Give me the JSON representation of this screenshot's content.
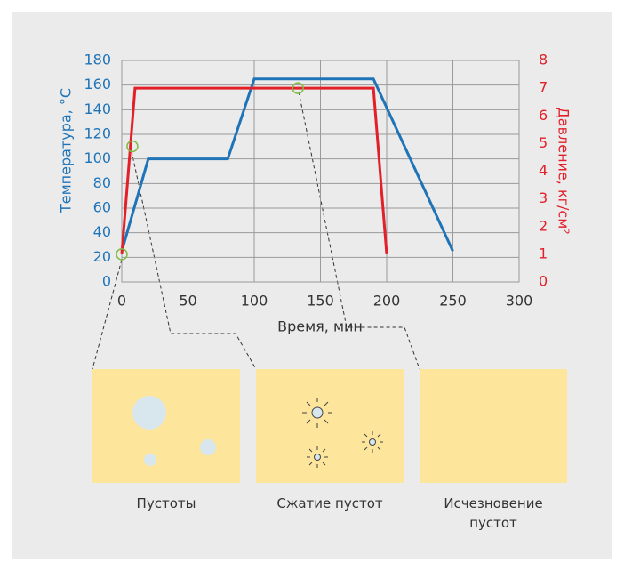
{
  "chart_data": {
    "type": "line",
    "x_label": "Время, мин",
    "y_label": "Температура, °С",
    "y2_label": "Давление, кг/см²",
    "xlim": [
      0,
      300
    ],
    "xticks": [
      0,
      50,
      100,
      150,
      200,
      250,
      300
    ],
    "ylim": [
      0,
      180
    ],
    "yticks": [
      0,
      20,
      40,
      60,
      80,
      100,
      120,
      140,
      160,
      180
    ],
    "y2lim": [
      0,
      8
    ],
    "y2ticks": [
      0,
      1,
      2,
      3,
      4,
      5,
      6,
      7,
      8
    ],
    "grid": true,
    "series": [
      {
        "color": "#1f74b8",
        "x": [
          0,
          20,
          80,
          100,
          190,
          250
        ],
        "values": [
          25,
          100,
          100,
          165,
          165,
          25
        ]
      },
      {
        "color": "#e2202a",
        "axis": "y2",
        "x": [
          0,
          10,
          190,
          200
        ],
        "values": [
          1,
          7,
          7,
          1
        ]
      }
    ],
    "markers": {
      "color": "#7dbb42",
      "axis": "y2",
      "x": [
        0,
        8,
        133
      ],
      "values": [
        1,
        4.9,
        7
      ]
    }
  },
  "captions": [
    "Пустоты",
    "Сжатие пустот",
    "Исчезновение пустот"
  ]
}
